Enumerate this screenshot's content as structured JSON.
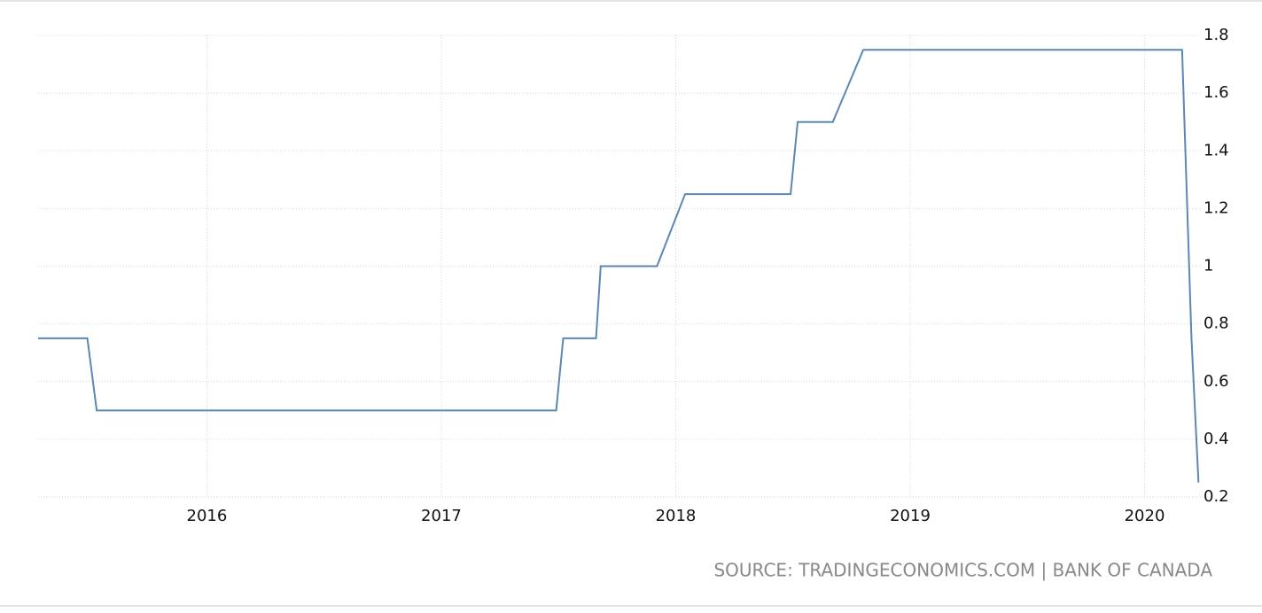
{
  "chart_data": {
    "type": "line",
    "x": [
      2015.28,
      2015.49,
      2015.53,
      2017.49,
      2017.52,
      2017.66,
      2017.68,
      2017.92,
      2018.04,
      2018.49,
      2018.52,
      2018.67,
      2018.8,
      2020.16,
      2020.18,
      2020.2,
      2020.23
    ],
    "series": [
      {
        "color": "#5b87b5",
        "values": [
          0.75,
          0.75,
          0.5,
          0.5,
          0.75,
          0.75,
          1,
          1,
          1.25,
          1.25,
          1.5,
          1.5,
          1.75,
          1.75,
          1.25,
          0.75,
          0.25
        ]
      }
    ],
    "xlim": [
      2015.28,
      2020.24
    ],
    "xticks": [
      2016,
      2017,
      2018,
      2019,
      2020
    ],
    "ylim": [
      0.2,
      1.8
    ],
    "yticks": [
      0.2,
      0.4,
      0.6,
      0.8,
      1,
      1.2,
      1.4,
      1.6,
      1.8
    ],
    "grid": true,
    "source": "SOURCE: TRADINGECONOMICS.COM | BANK OF CANADA"
  }
}
